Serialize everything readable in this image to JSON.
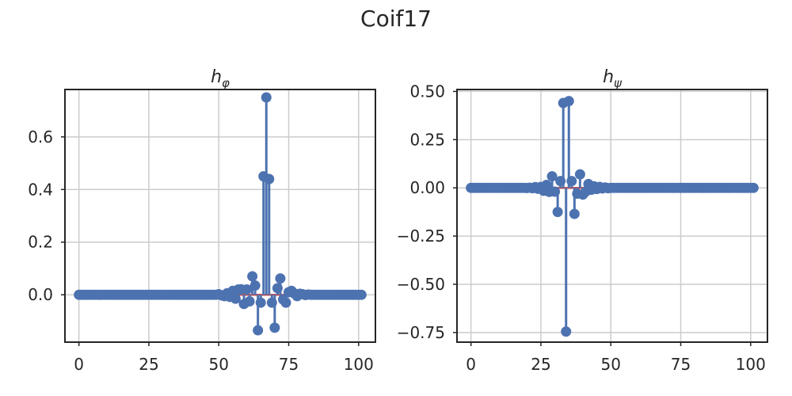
{
  "figure": {
    "title": "Coif17"
  },
  "chart_data": [
    {
      "type": "stem",
      "title_base": "h",
      "title_sub": "φ",
      "xlabel": "",
      "ylabel": "",
      "xlim": [
        -5,
        106
      ],
      "ylim": [
        -0.18,
        0.78
      ],
      "xticks": [
        0,
        25,
        50,
        75,
        100
      ],
      "yticks": [
        0.0,
        0.2,
        0.4,
        0.6
      ],
      "ytick_labels": [
        "0.0",
        "0.2",
        "0.4",
        "0.6"
      ],
      "grid": true,
      "baseline": 0,
      "colors": {
        "stem": "#4c72b0",
        "baseline": "#c44e52"
      },
      "series": [
        {
          "x_start": 0,
          "values": [
            0,
            0,
            0,
            0,
            0,
            0,
            0,
            0,
            0,
            0,
            0,
            0,
            0,
            0,
            0,
            0,
            0,
            0,
            0,
            0,
            0,
            0,
            0,
            0,
            0,
            0,
            0,
            0,
            0,
            0,
            0,
            0,
            0,
            0,
            0,
            0,
            0,
            0,
            0,
            0,
            0,
            0,
            0,
            0,
            0,
            0,
            0,
            0,
            0,
            0,
            0.002,
            -0.002,
            -0.005,
            0.006,
            -0.008,
            0.015,
            -0.015,
            0.02,
            0.021,
            -0.035,
            0.02,
            -0.025,
            0.07,
            0.035,
            -0.135,
            -0.03,
            0.45,
            0.75,
            0.44,
            -0.03,
            -0.125,
            0.025,
            0.062,
            -0.018,
            -0.03,
            0.01,
            0.015,
            0.005,
            -0.005,
            0.004,
            0.002,
            -0.001,
            0.001,
            0,
            0,
            0,
            0,
            0,
            0,
            0,
            0,
            0,
            0,
            0,
            0,
            0,
            0,
            0,
            0,
            0,
            0,
            0
          ]
        }
      ]
    },
    {
      "type": "stem",
      "title_base": "h",
      "title_sub": "ψ",
      "xlabel": "",
      "ylabel": "",
      "xlim": [
        -5,
        106
      ],
      "ylim": [
        -0.8,
        0.51
      ],
      "xticks": [
        0,
        25,
        50,
        75,
        100
      ],
      "yticks": [
        -0.75,
        -0.5,
        -0.25,
        0.0,
        0.25,
        0.5
      ],
      "ytick_labels": [
        "−0.75",
        "−0.50",
        "−0.25",
        "0.00",
        "0.25",
        "0.50"
      ],
      "grid": true,
      "baseline": 0,
      "colors": {
        "stem": "#4c72b0",
        "baseline": "#c44e52"
      },
      "series": [
        {
          "x_start": 0,
          "values": [
            0,
            0,
            0,
            0,
            0,
            0,
            0,
            0,
            0,
            0,
            0,
            0,
            0,
            0,
            0,
            0,
            0,
            0,
            0,
            0,
            -0.001,
            0.001,
            -0.002,
            0.004,
            -0.005,
            0.005,
            -0.015,
            0.015,
            -0.021,
            0.06,
            -0.02,
            -0.125,
            0.035,
            0.44,
            -0.745,
            0.45,
            0.035,
            -0.135,
            -0.03,
            0.07,
            -0.035,
            -0.02,
            0.02,
            -0.01,
            0.008,
            -0.006,
            0.005,
            -0.003,
            0.002,
            -0.002,
            0,
            0,
            0,
            0,
            0,
            0,
            0,
            0,
            0,
            0,
            0,
            0,
            0,
            0,
            0,
            0,
            0,
            0,
            0,
            0,
            0,
            0,
            0,
            0,
            0,
            0,
            0,
            0,
            0,
            0,
            0,
            0,
            0,
            0,
            0,
            0,
            0,
            0,
            0,
            0,
            0,
            0,
            0,
            0,
            0,
            0,
            0,
            0,
            0,
            0,
            0,
            0
          ]
        }
      ]
    }
  ]
}
